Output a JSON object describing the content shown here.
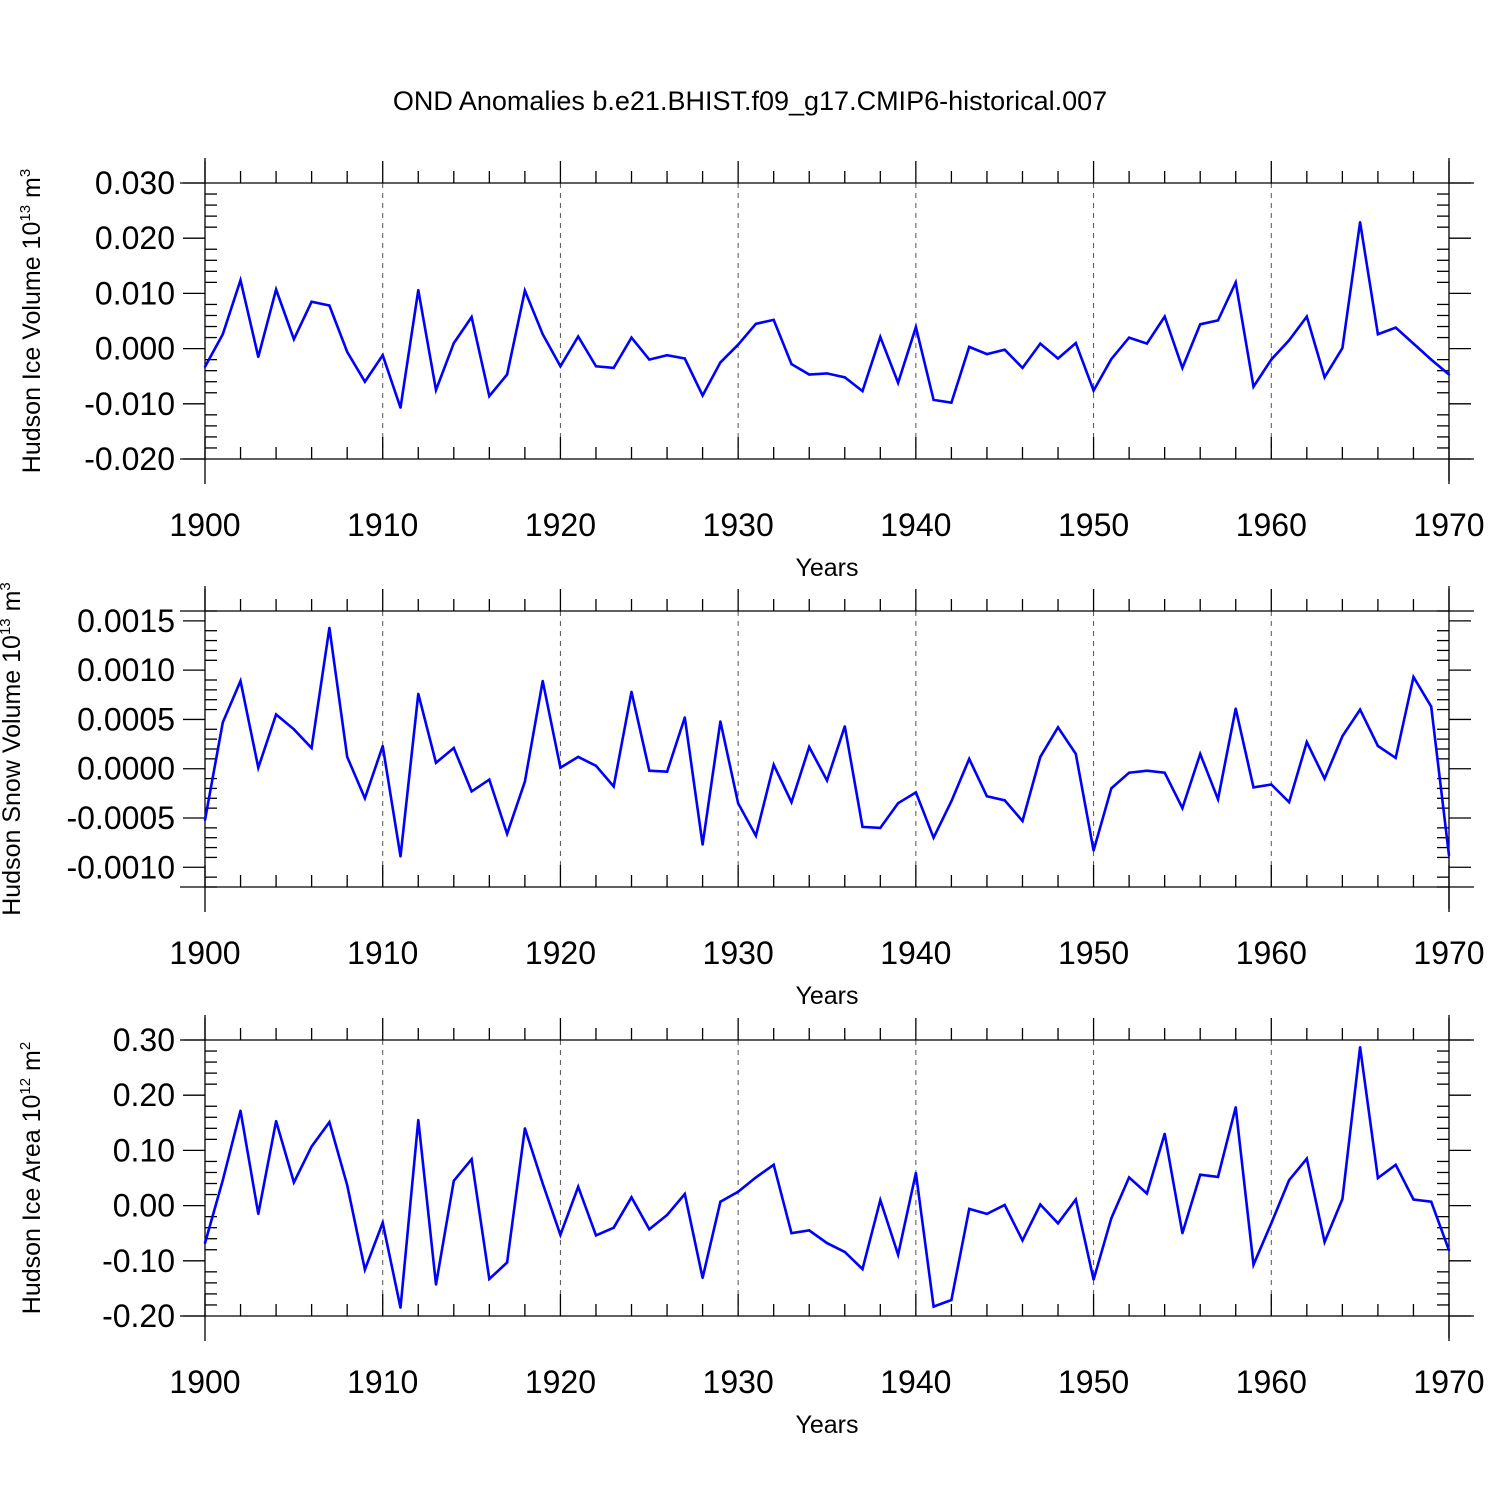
{
  "title": "OND Anomalies b.e21.BHIST.f09_g17.CMIP6-historical.007",
  "chart_data": [
    {
      "type": "line",
      "ylabel": "Hudson Ice Volume 10",
      "ylabel_exp": "13",
      "ylabel_unit": " m",
      "ylabel_unit_exp": "3",
      "xlabel": "Years",
      "xlim": [
        1900,
        1970
      ],
      "ylim": [
        -0.02,
        0.03
      ],
      "yticks": [
        -0.02,
        -0.01,
        0.0,
        0.01,
        0.02,
        0.03
      ],
      "ytick_labels": [
        "-0.020",
        "-0.010",
        "0.000",
        "0.010",
        "0.020",
        "0.030"
      ],
      "xticks": [
        1900,
        1910,
        1920,
        1930,
        1940,
        1950,
        1960,
        1970
      ],
      "xtick_labels": [
        "1900",
        "1910",
        "1920",
        "1930",
        "1940",
        "1950",
        "1960",
        "1970"
      ],
      "color": "#0000ff",
      "series": [
        {
          "name": "Hudson Ice Volume",
          "x": [
            1900,
            1901,
            1902,
            1903,
            1904,
            1905,
            1906,
            1907,
            1908,
            1909,
            1910,
            1911,
            1912,
            1913,
            1914,
            1915,
            1916,
            1917,
            1918,
            1919,
            1920,
            1921,
            1922,
            1923,
            1924,
            1925,
            1926,
            1927,
            1928,
            1929,
            1930,
            1931,
            1932,
            1933,
            1934,
            1935,
            1936,
            1937,
            1938,
            1939,
            1940,
            1941,
            1942,
            1943,
            1944,
            1945,
            1946,
            1947,
            1948,
            1949,
            1950,
            1951,
            1952,
            1953,
            1954,
            1955,
            1956,
            1957,
            1958,
            1959,
            1960,
            1961,
            1962,
            1963,
            1964,
            1965,
            1966,
            1967,
            1968,
            1969,
            1970
          ],
          "values": [
            -0.0033,
            0.0026,
            0.0124,
            -0.0015,
            0.0107,
            0.0017,
            0.0085,
            0.0078,
            -0.0006,
            -0.006,
            -0.0012,
            -0.0107,
            0.0106,
            -0.0075,
            0.001,
            0.0057,
            -0.0086,
            -0.0047,
            0.0105,
            0.0026,
            -0.0032,
            0.0022,
            -0.0032,
            -0.0035,
            0.002,
            -0.002,
            -0.0012,
            -0.0018,
            -0.0085,
            -0.0025,
            0.0007,
            0.0045,
            0.0052,
            -0.0028,
            -0.0047,
            -0.0045,
            -0.0052,
            -0.0077,
            0.0021,
            -0.0062,
            0.0039,
            -0.0093,
            -0.0098,
            0.0003,
            -0.001,
            -0.0002,
            -0.0035,
            0.0009,
            -0.0018,
            0.001,
            -0.0076,
            -0.0019,
            0.002,
            0.0009,
            0.0058,
            -0.0035,
            0.0044,
            0.0051,
            0.012,
            -0.0069,
            -0.002,
            0.0015,
            0.0058,
            -0.0052,
            0.0001,
            0.0229,
            0.0026,
            0.0038,
            0.0009,
            -0.002,
            -0.0047
          ]
        }
      ]
    },
    {
      "type": "line",
      "ylabel": "Hudson Snow Volume 10",
      "ylabel_exp": "13",
      "ylabel_unit": " m",
      "ylabel_unit_exp": "3",
      "xlabel": "Years",
      "xlim": [
        1900,
        1970
      ],
      "ylim": [
        -0.0012,
        0.0016
      ],
      "yticks": [
        -0.001,
        -0.0005,
        0.0,
        0.0005,
        0.001,
        0.0015
      ],
      "ytick_labels": [
        "-0.0010",
        "-0.0005",
        "0.0000",
        "0.0005",
        "0.0010",
        "0.0015"
      ],
      "xticks": [
        1900,
        1910,
        1920,
        1930,
        1940,
        1950,
        1960,
        1970
      ],
      "xtick_labels": [
        "1900",
        "1910",
        "1920",
        "1930",
        "1940",
        "1950",
        "1960",
        "1970"
      ],
      "color": "#0000ff",
      "series": [
        {
          "name": "Hudson Snow Volume",
          "x": [
            1900,
            1901,
            1902,
            1903,
            1904,
            1905,
            1906,
            1907,
            1908,
            1909,
            1910,
            1911,
            1912,
            1913,
            1914,
            1915,
            1916,
            1917,
            1918,
            1919,
            1920,
            1921,
            1922,
            1923,
            1924,
            1925,
            1926,
            1927,
            1928,
            1929,
            1930,
            1931,
            1932,
            1933,
            1934,
            1935,
            1936,
            1937,
            1938,
            1939,
            1940,
            1941,
            1942,
            1943,
            1944,
            1945,
            1946,
            1947,
            1948,
            1949,
            1950,
            1951,
            1952,
            1953,
            1954,
            1955,
            1956,
            1957,
            1958,
            1959,
            1960,
            1961,
            1962,
            1963,
            1964,
            1965,
            1966,
            1967,
            1968,
            1969,
            1970
          ],
          "values": [
            -0.00052,
            0.00047,
            0.00089,
            1e-05,
            0.00055,
            0.0004,
            0.00021,
            0.00143,
            0.00012,
            -0.0003,
            0.00023,
            -0.00089,
            0.00076,
            6e-05,
            0.00021,
            -0.00023,
            -0.00011,
            -0.00066,
            -0.00013,
            0.00089,
            1e-05,
            0.00012,
            3e-05,
            -0.00018,
            0.00078,
            -2e-05,
            -3e-05,
            0.00052,
            -0.00077,
            0.00048,
            -0.00035,
            -0.00068,
            4e-05,
            -0.00034,
            0.00022,
            -0.00012,
            0.00043,
            -0.00059,
            -0.0006,
            -0.00035,
            -0.00024,
            -0.0007,
            -0.00033,
            0.0001,
            -0.00028,
            -0.00032,
            -0.00053,
            0.00012,
            0.00042,
            0.00015,
            -0.00083,
            -0.0002,
            -4e-05,
            -2e-05,
            -4e-05,
            -0.0004,
            0.00015,
            -0.00031,
            0.00061,
            -0.00019,
            -0.00016,
            -0.00034,
            0.00027,
            -0.0001,
            0.00033,
            0.0006,
            0.00023,
            0.00011,
            0.00093,
            0.00063,
            -0.00088
          ]
        }
      ]
    },
    {
      "type": "line",
      "ylabel": "Hudson Ice Area 10",
      "ylabel_exp": "12",
      "ylabel_unit": " m",
      "ylabel_unit_exp": "2",
      "xlabel": "Years",
      "xlim": [
        1900,
        1970
      ],
      "ylim": [
        -0.2,
        0.3
      ],
      "yticks": [
        -0.2,
        -0.1,
        0.0,
        0.1,
        0.2,
        0.3
      ],
      "ytick_labels": [
        "-0.20",
        "-0.10",
        "0.00",
        "0.10",
        "0.20",
        "0.30"
      ],
      "xticks": [
        1900,
        1910,
        1920,
        1930,
        1940,
        1950,
        1960,
        1970
      ],
      "xtick_labels": [
        "1900",
        "1910",
        "1920",
        "1930",
        "1940",
        "1950",
        "1960",
        "1970"
      ],
      "color": "#0000ff",
      "series": [
        {
          "name": "Hudson Ice Area",
          "x": [
            1900,
            1901,
            1902,
            1903,
            1904,
            1905,
            1906,
            1907,
            1908,
            1909,
            1910,
            1911,
            1912,
            1913,
            1914,
            1915,
            1916,
            1917,
            1918,
            1919,
            1920,
            1921,
            1922,
            1923,
            1924,
            1925,
            1926,
            1927,
            1928,
            1929,
            1930,
            1931,
            1932,
            1933,
            1934,
            1935,
            1936,
            1937,
            1938,
            1939,
            1940,
            1941,
            1942,
            1943,
            1944,
            1945,
            1946,
            1947,
            1948,
            1949,
            1950,
            1951,
            1952,
            1953,
            1954,
            1955,
            1956,
            1957,
            1958,
            1959,
            1960,
            1961,
            1962,
            1963,
            1964,
            1965,
            1966,
            1967,
            1968,
            1969,
            1970
          ],
          "values": [
            -0.068,
            0.046,
            0.172,
            -0.015,
            0.153,
            0.042,
            0.107,
            0.151,
            0.037,
            -0.116,
            -0.031,
            -0.185,
            0.155,
            -0.143,
            0.045,
            0.084,
            -0.133,
            -0.103,
            0.14,
            0.04,
            -0.053,
            0.034,
            -0.054,
            -0.04,
            0.015,
            -0.043,
            -0.017,
            0.021,
            -0.131,
            0.007,
            0.025,
            0.051,
            0.074,
            -0.05,
            -0.045,
            -0.068,
            -0.084,
            -0.115,
            0.01,
            -0.089,
            0.059,
            -0.183,
            -0.171,
            -0.006,
            -0.015,
            0.001,
            -0.063,
            0.002,
            -0.032,
            0.011,
            -0.134,
            -0.023,
            0.051,
            0.022,
            0.13,
            -0.05,
            0.056,
            0.052,
            0.178,
            -0.107,
            -0.032,
            0.046,
            0.085,
            -0.066,
            0.012,
            0.287,
            0.05,
            0.074,
            0.011,
            0.007,
            -0.081
          ]
        }
      ]
    }
  ]
}
